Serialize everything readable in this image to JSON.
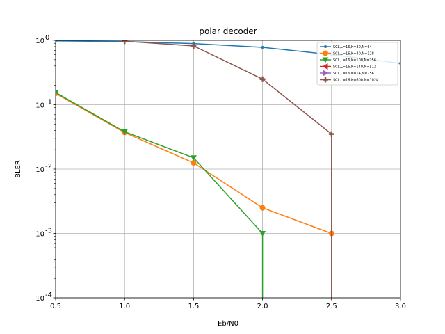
{
  "chart_data": {
    "type": "line",
    "title": "polar decoder",
    "xlabel": "Eb/N0",
    "ylabel": "BLER",
    "xlim": [
      0.5,
      3.0
    ],
    "ylim": [
      0.0001,
      1
    ],
    "yscale": "log",
    "grid": true,
    "legend_position": "top-right",
    "x_ticks": [
      "0.5",
      "1.0",
      "1.5",
      "2.0",
      "2.5",
      "3.0"
    ],
    "y_ticks": [
      {
        "value": 1,
        "exp": "0"
      },
      {
        "value": 0.1,
        "exp": "-1"
      },
      {
        "value": 0.01,
        "exp": "-2"
      },
      {
        "value": 0.001,
        "exp": "-3"
      },
      {
        "value": 0.0001,
        "exp": "-4"
      }
    ],
    "series": [
      {
        "name": "SCL,L=16,K=30,N=64",
        "color": "#1f77b4",
        "marker": "dot",
        "x": [
          0.5,
          1.0,
          1.5,
          2.0,
          2.5,
          3.0
        ],
        "y": [
          0.98,
          0.96,
          0.89,
          0.78,
          0.6,
          0.44
        ]
      },
      {
        "name": "SCL,L=16,K=40,N=128",
        "color": "#ff7f0e",
        "marker": "circle",
        "x": [
          0.5,
          1.0,
          1.5,
          2.0,
          2.5
        ],
        "y": [
          0.15,
          0.037,
          0.0125,
          0.0025,
          0.001
        ]
      },
      {
        "name": "SCL,L=16,K=100,N=256",
        "color": "#2ca02c",
        "marker": "triangle-down",
        "x": [
          0.5,
          1.0,
          1.5,
          2.0,
          2.0
        ],
        "y": [
          0.155,
          0.038,
          0.015,
          0.001,
          0.0001
        ]
      },
      {
        "name": "SCL,L=16,K=140,N=512",
        "color": "#d62728",
        "marker": "triangle-left",
        "x": [],
        "y": []
      },
      {
        "name": "SCL,L=16,K=14,N=256",
        "color": "#9467bd",
        "marker": "triangle-right",
        "x": [],
        "y": []
      },
      {
        "name": "SCL,L=16,K=600,N=1024",
        "color": "#8c564b",
        "marker": "plus",
        "x": [
          1.0,
          1.5,
          2.0,
          2.5,
          2.5
        ],
        "y": [
          0.97,
          0.82,
          0.25,
          0.035,
          0.0001
        ]
      }
    ]
  }
}
